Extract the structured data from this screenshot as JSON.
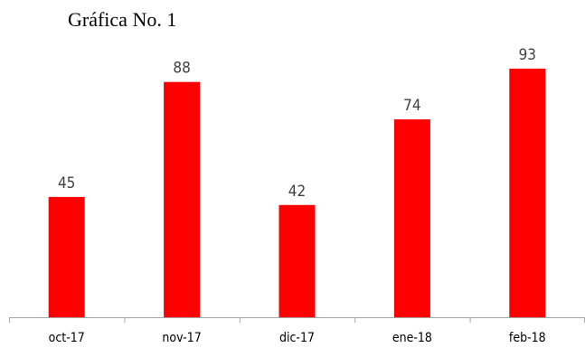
{
  "chart_data": {
    "type": "bar",
    "title": "Gráfica No. 1",
    "categories": [
      "oct-17",
      "nov-17",
      "dic-17",
      "ene-18",
      "feb-18"
    ],
    "values": [
      45,
      88,
      42,
      74,
      93
    ],
    "data_labels": [
      "45",
      "88",
      "42",
      "74",
      "93"
    ],
    "xlabel": "",
    "ylabel": "",
    "ylim": [
      0,
      100
    ],
    "grid": false,
    "bar_color": "#ff0000",
    "axis_color": "#a6a6a6",
    "label_color": "#404040"
  }
}
